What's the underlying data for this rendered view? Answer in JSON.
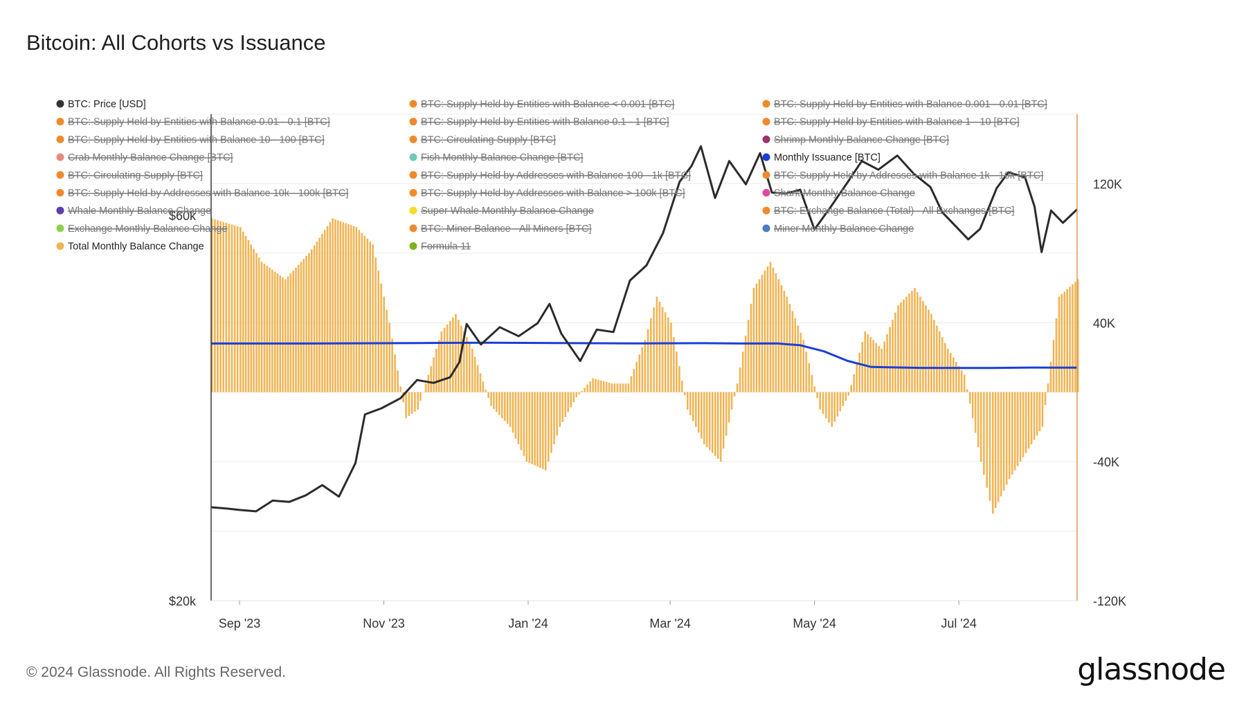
{
  "title": "Bitcoin: All Cohorts vs Issuance",
  "footer": "© 2024 Glassnode. All Rights Reserved.",
  "brand": "glassnode",
  "colors": {
    "price": "#2b2b2b",
    "issuance": "#1a3fd6",
    "total": "#f0b454",
    "orange": "#ef8a2c",
    "axis": "#d89a55",
    "grid": "#ececec"
  },
  "chart_data": {
    "type": "line",
    "title": "Bitcoin: All Cohorts vs Issuance",
    "x_tick_labels": [
      "Sep '23",
      "Nov '23",
      "Jan '24",
      "Mar '24",
      "May '24",
      "Jul '24"
    ],
    "x_ticks": [
      "2023-09-01",
      "2023-11-01",
      "2024-01-01",
      "2024-03-01",
      "2024-05-01",
      "2024-07-01"
    ],
    "x_range": [
      "2023-08-20",
      "2024-08-20"
    ],
    "y_left": {
      "scale": "log",
      "range": [
        20000,
        80000
      ],
      "tick_labels": [
        "$20k",
        "$60k"
      ],
      "ticks": [
        20000,
        60000
      ]
    },
    "y_right": {
      "range": [
        -120000,
        160000
      ],
      "tick_labels": [
        "-120K",
        "-40K",
        "40K",
        "120K"
      ],
      "ticks": [
        -120000,
        -40000,
        40000,
        120000
      ]
    },
    "legend_placement": "top",
    "legend": [
      {
        "label": "BTC: Price [USD]",
        "color": "#333333",
        "active": true
      },
      {
        "label": "BTC: Supply Held by Entities with Balance < 0.001 [BTC]",
        "color": "#ef8a2c",
        "active": false
      },
      {
        "label": "BTC: Supply Held by Entities with Balance 0.001 - 0.01 [BTC]",
        "color": "#ef8a2c",
        "active": false
      },
      {
        "label": "BTC: Supply Held by Entities with Balance 0.01 - 0.1 [BTC]",
        "color": "#ef8a2c",
        "active": false
      },
      {
        "label": "BTC: Supply Held by Entities with Balance 0.1 - 1 [BTC]",
        "color": "#ef8a2c",
        "active": false
      },
      {
        "label": "BTC: Supply Held by Entities with Balance 1 - 10 [BTC]",
        "color": "#ef8a2c",
        "active": false
      },
      {
        "label": "BTC: Supply Held by Entities with Balance 10 - 100 [BTC]",
        "color": "#ef8a2c",
        "active": false
      },
      {
        "label": "BTC: Circulating Supply [BTC]",
        "color": "#ef8a2c",
        "active": false
      },
      {
        "label": "Shrimp Monthly Balance Change [BTC]",
        "color": "#a0306e",
        "active": false
      },
      {
        "label": "Crab Monthly Balance Change [BTC]",
        "color": "#e8897a",
        "active": false
      },
      {
        "label": "Fish Monthly Balance Change [BTC]",
        "color": "#6fc7b7",
        "active": false
      },
      {
        "label": "Monthly Issuance [BTC]",
        "color": "#1a3fd6",
        "active": true
      },
      {
        "label": "BTC: Circulating Supply [BTC]",
        "color": "#ef8a2c",
        "active": false
      },
      {
        "label": "BTC: Supply Held by Addresses with Balance 100 - 1k [BTC]",
        "color": "#ef8a2c",
        "active": false
      },
      {
        "label": "BTC: Supply Held by Addresses with Balance 1k - 10k [BTC]",
        "color": "#ef8a2c",
        "active": false
      },
      {
        "label": "BTC: Supply Held by Addresses with Balance 10k - 100k [BTC]",
        "color": "#ef8a2c",
        "active": false
      },
      {
        "label": "BTC: Supply Held by Addresses with Balance > 100k [BTC]",
        "color": "#ef8a2c",
        "active": false
      },
      {
        "label": "Shark Monthly Balance Change",
        "color": "#e0479e",
        "active": false
      },
      {
        "label": "Whale Monthly Balance Change",
        "color": "#5a3fb0",
        "active": false
      },
      {
        "label": "Super Whale Monthly Balance Change",
        "color": "#f2dc2a",
        "active": false
      },
      {
        "label": "BTC: Exchange Balance (Total) - All Exchanges [BTC]",
        "color": "#ef8a2c",
        "active": false
      },
      {
        "label": "Exchange Monthly Balance Change",
        "color": "#8fd14f",
        "active": false
      },
      {
        "label": "BTC: Miner Balance - All Miners [BTC]",
        "color": "#ef8a2c",
        "active": false
      },
      {
        "label": "Miner Monthly Balance Change",
        "color": "#4a7bc4",
        "active": false
      },
      {
        "label": "Total Monthly Balance Change",
        "color": "#f0b454",
        "active": true
      },
      {
        "label": "Formula 11",
        "color": "#7ab31f",
        "active": false
      }
    ],
    "series": [
      {
        "name": "BTC: Price [USD]",
        "axis": "left",
        "points": [
          [
            "2023-08-20",
            26100
          ],
          [
            "2023-08-27",
            26000
          ],
          [
            "2023-09-01",
            25900
          ],
          [
            "2023-09-08",
            25800
          ],
          [
            "2023-09-15",
            26600
          ],
          [
            "2023-09-22",
            26500
          ],
          [
            "2023-09-29",
            27000
          ],
          [
            "2023-10-06",
            27800
          ],
          [
            "2023-10-13",
            26900
          ],
          [
            "2023-10-20",
            29600
          ],
          [
            "2023-10-24",
            34000
          ],
          [
            "2023-10-31",
            34600
          ],
          [
            "2023-11-08",
            35600
          ],
          [
            "2023-11-15",
            37500
          ],
          [
            "2023-11-22",
            37200
          ],
          [
            "2023-11-29",
            37800
          ],
          [
            "2023-12-03",
            39500
          ],
          [
            "2023-12-06",
            44000
          ],
          [
            "2023-12-12",
            41500
          ],
          [
            "2023-12-20",
            43600
          ],
          [
            "2023-12-28",
            42500
          ],
          [
            "2024-01-05",
            44100
          ],
          [
            "2024-01-10",
            46600
          ],
          [
            "2024-01-15",
            42800
          ],
          [
            "2024-01-23",
            39600
          ],
          [
            "2024-01-30",
            43300
          ],
          [
            "2024-02-06",
            43000
          ],
          [
            "2024-02-13",
            49800
          ],
          [
            "2024-02-20",
            52000
          ],
          [
            "2024-02-27",
            57000
          ],
          [
            "2024-03-05",
            66000
          ],
          [
            "2024-03-10",
            69000
          ],
          [
            "2024-03-14",
            73000
          ],
          [
            "2024-03-20",
            63000
          ],
          [
            "2024-03-26",
            70000
          ],
          [
            "2024-04-02",
            65500
          ],
          [
            "2024-04-08",
            71600
          ],
          [
            "2024-04-13",
            64000
          ],
          [
            "2024-04-19",
            63800
          ],
          [
            "2024-04-25",
            64500
          ],
          [
            "2024-05-01",
            57600
          ],
          [
            "2024-05-08",
            61500
          ],
          [
            "2024-05-15",
            65900
          ],
          [
            "2024-05-21",
            70000
          ],
          [
            "2024-05-28",
            68300
          ],
          [
            "2024-06-05",
            71100
          ],
          [
            "2024-06-12",
            67500
          ],
          [
            "2024-06-19",
            65000
          ],
          [
            "2024-06-24",
            60500
          ],
          [
            "2024-07-05",
            56000
          ],
          [
            "2024-07-10",
            57700
          ],
          [
            "2024-07-17",
            64800
          ],
          [
            "2024-07-22",
            67800
          ],
          [
            "2024-07-29",
            66800
          ],
          [
            "2024-08-02",
            61500
          ],
          [
            "2024-08-05",
            54000
          ],
          [
            "2024-08-09",
            60800
          ],
          [
            "2024-08-14",
            58700
          ],
          [
            "2024-08-20",
            61000
          ]
        ]
      },
      {
        "name": "Monthly Issuance [BTC]",
        "axis": "right",
        "points": [
          [
            "2023-08-20",
            28000
          ],
          [
            "2023-10-01",
            28000
          ],
          [
            "2023-11-15",
            28300
          ],
          [
            "2023-12-15",
            28500
          ],
          [
            "2024-01-15",
            28300
          ],
          [
            "2024-02-15",
            28100
          ],
          [
            "2024-03-15",
            28200
          ],
          [
            "2024-04-01",
            28000
          ],
          [
            "2024-04-15",
            28100
          ],
          [
            "2024-04-25",
            27000
          ],
          [
            "2024-05-05",
            23500
          ],
          [
            "2024-05-15",
            18000
          ],
          [
            "2024-05-25",
            14500
          ],
          [
            "2024-06-15",
            14000
          ],
          [
            "2024-07-15",
            13900
          ],
          [
            "2024-08-01",
            14200
          ],
          [
            "2024-08-20",
            14100
          ]
        ]
      },
      {
        "name": "Total Monthly Balance Change",
        "type": "bar",
        "axis": "right",
        "points": [
          [
            "2023-08-20",
            100000
          ],
          [
            "2023-09-01",
            95000
          ],
          [
            "2023-09-10",
            75000
          ],
          [
            "2023-09-20",
            65000
          ],
          [
            "2023-09-30",
            80000
          ],
          [
            "2023-10-10",
            100000
          ],
          [
            "2023-10-20",
            95000
          ],
          [
            "2023-10-27",
            85000
          ],
          [
            "2023-11-03",
            40000
          ],
          [
            "2023-11-10",
            -15000
          ],
          [
            "2023-11-15",
            -10000
          ],
          [
            "2023-11-25",
            35000
          ],
          [
            "2023-12-01",
            45000
          ],
          [
            "2023-12-08",
            25000
          ],
          [
            "2023-12-16",
            -8000
          ],
          [
            "2023-12-24",
            -20000
          ],
          [
            "2023-12-31",
            -40000
          ],
          [
            "2024-01-08",
            -45000
          ],
          [
            "2024-01-14",
            -20000
          ],
          [
            "2024-01-21",
            -3000
          ],
          [
            "2024-01-28",
            8000
          ],
          [
            "2024-02-05",
            5000
          ],
          [
            "2024-02-12",
            5000
          ],
          [
            "2024-02-19",
            30000
          ],
          [
            "2024-02-24",
            55000
          ],
          [
            "2024-03-01",
            40000
          ],
          [
            "2024-03-08",
            -10000
          ],
          [
            "2024-03-15",
            -30000
          ],
          [
            "2024-03-22",
            -40000
          ],
          [
            "2024-03-29",
            5000
          ],
          [
            "2024-04-05",
            60000
          ],
          [
            "2024-04-12",
            75000
          ],
          [
            "2024-04-19",
            55000
          ],
          [
            "2024-04-26",
            30000
          ],
          [
            "2024-05-03",
            -10000
          ],
          [
            "2024-05-08",
            -20000
          ],
          [
            "2024-05-15",
            -2000
          ],
          [
            "2024-05-22",
            35000
          ],
          [
            "2024-05-29",
            25000
          ],
          [
            "2024-06-05",
            50000
          ],
          [
            "2024-06-12",
            60000
          ],
          [
            "2024-06-19",
            45000
          ],
          [
            "2024-06-26",
            25000
          ],
          [
            "2024-07-03",
            10000
          ],
          [
            "2024-07-10",
            -40000
          ],
          [
            "2024-07-15",
            -70000
          ],
          [
            "2024-07-22",
            -50000
          ],
          [
            "2024-07-29",
            -35000
          ],
          [
            "2024-08-05",
            -20000
          ],
          [
            "2024-08-12",
            55000
          ],
          [
            "2024-08-20",
            65000
          ]
        ]
      }
    ]
  }
}
